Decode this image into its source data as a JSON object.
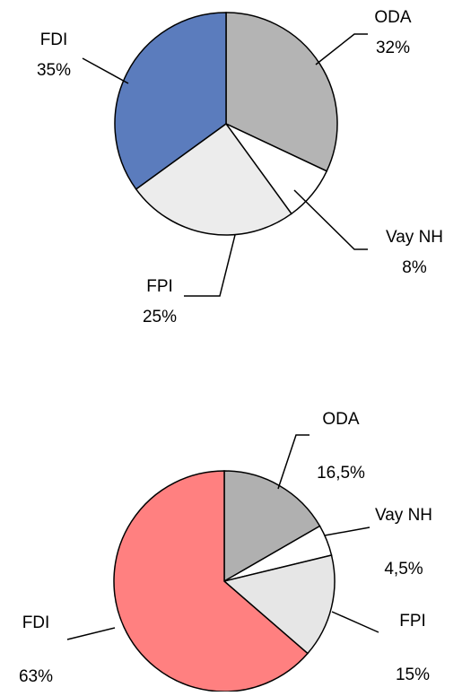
{
  "chart_data": [
    {
      "type": "pie",
      "categories": [
        "ODA",
        "Vay NH",
        "FPI",
        "FDI"
      ],
      "values": [
        32,
        8,
        25,
        35
      ],
      "value_labels": [
        "32%",
        "8%",
        "25%",
        "35%"
      ],
      "colors": [
        "#b4b4b4",
        "#ffffff",
        "#ececec",
        "#5b7cbd"
      ]
    },
    {
      "type": "pie",
      "categories": [
        "ODA",
        "Vay NH",
        "FPI",
        "FDI"
      ],
      "values": [
        16.5,
        4.5,
        15,
        63
      ],
      "value_labels": [
        "16,5%",
        "4,5%",
        "15%",
        "63%"
      ],
      "colors": [
        "#b0b0b0",
        "#ffffff",
        "#e6e6e6",
        "#ff8080"
      ]
    }
  ]
}
